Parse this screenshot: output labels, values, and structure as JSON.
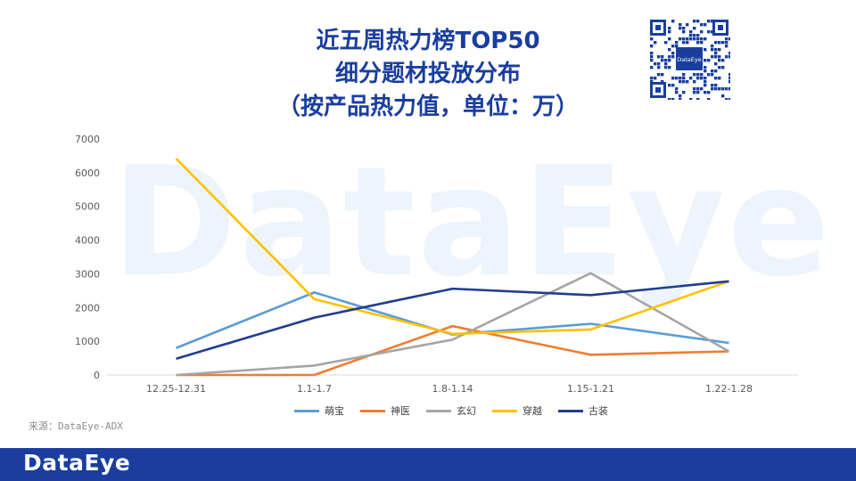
{
  "title": {
    "line1": "近五周热力榜TOP50",
    "line2": "细分题材投放分布",
    "line3": "（按产品热力值，单位：万）"
  },
  "watermark": "DataEye",
  "qr_badge": "DataEye",
  "source": "来源：DataEye-ADX",
  "footer_logo": "DataEye",
  "colors": {
    "title": "#1a3e9e",
    "footer": "#1a3d9e"
  },
  "chart_data": {
    "type": "line",
    "categories": [
      "12.25-12.31",
      "1.1-1.7",
      "1.8-1.14",
      "1.15-1.21",
      "1.22-1.28"
    ],
    "ylim": [
      0,
      7000
    ],
    "yticks": [
      0,
      1000,
      2000,
      3000,
      4000,
      5000,
      6000,
      7000
    ],
    "grid": false,
    "legend_position": "bottom",
    "series": [
      {
        "name": "萌宝",
        "color": "#5b9bd5",
        "values": [
          800,
          2450,
          1200,
          1520,
          950
        ]
      },
      {
        "name": "神医",
        "color": "#ed7d31",
        "values": [
          0,
          0,
          1450,
          600,
          700
        ]
      },
      {
        "name": "玄幻",
        "color": "#a5a5a5",
        "values": [
          0,
          280,
          1050,
          3020,
          700
        ]
      },
      {
        "name": "穿越",
        "color": "#ffc000",
        "values": [
          6420,
          2250,
          1220,
          1350,
          2780
        ]
      },
      {
        "name": "古装",
        "color": "#203d8f",
        "values": [
          480,
          1700,
          2560,
          2370,
          2780
        ]
      }
    ]
  }
}
